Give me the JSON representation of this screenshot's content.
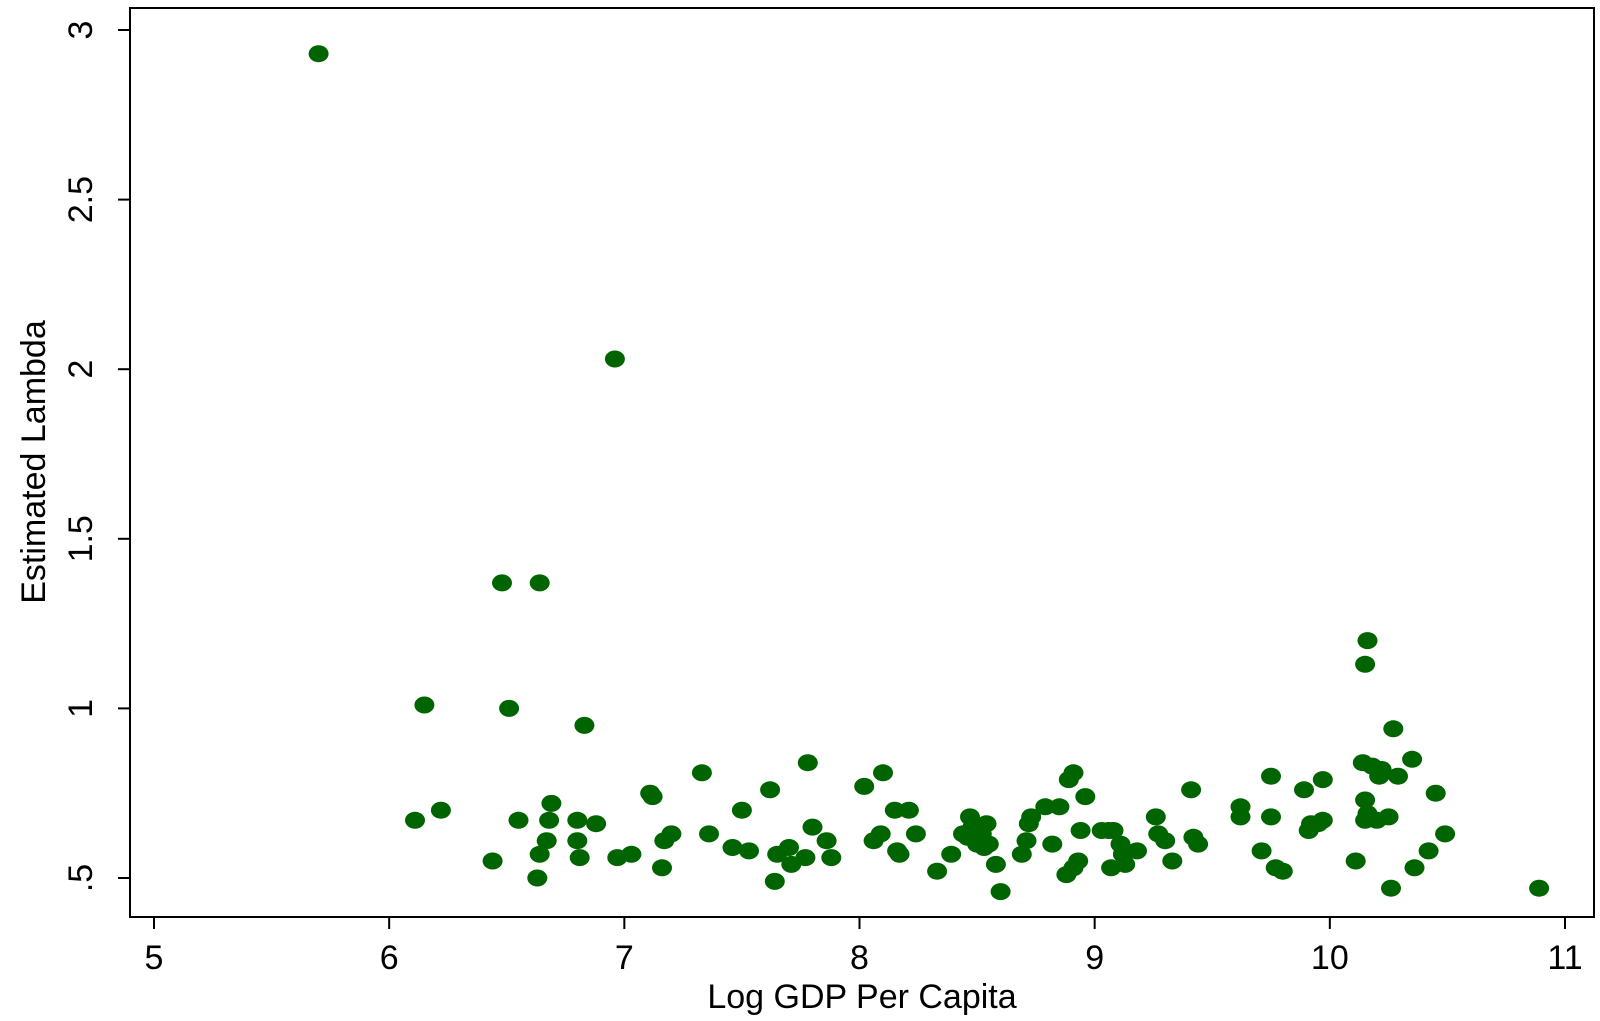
{
  "chart_data": {
    "type": "scatter",
    "title": "",
    "xlabel": "Log GDP Per Capita",
    "ylabel": "Estimated Lambda",
    "xlim": [
      5,
      11.1
    ],
    "ylim": [
      0.39,
      3.08
    ],
    "x_ticks": [
      5,
      6,
      7,
      8,
      9,
      10,
      11
    ],
    "x_tick_labels": [
      "5",
      "6",
      "7",
      "8",
      "9",
      "10",
      "11"
    ],
    "y_ticks": [
      0.5,
      1,
      1.5,
      2,
      2.5,
      3
    ],
    "y_tick_labels": [
      ".5",
      "1",
      "1.5",
      "2",
      "2.5",
      "3"
    ],
    "grid": false,
    "legend": "none",
    "marker_color": "#006400",
    "series": [
      {
        "points": [
          [
            5.7,
            2.93
          ],
          [
            6.96,
            2.03
          ],
          [
            6.48,
            1.37
          ],
          [
            6.64,
            1.37
          ],
          [
            6.15,
            1.01
          ],
          [
            6.51,
            1.0
          ],
          [
            6.83,
            0.95
          ],
          [
            6.11,
            0.67
          ],
          [
            6.22,
            0.7
          ],
          [
            6.44,
            0.55
          ],
          [
            6.55,
            0.67
          ],
          [
            6.63,
            0.5
          ],
          [
            6.64,
            0.57
          ],
          [
            6.67,
            0.61
          ],
          [
            6.68,
            0.67
          ],
          [
            6.69,
            0.72
          ],
          [
            6.8,
            0.61
          ],
          [
            6.8,
            0.67
          ],
          [
            6.81,
            0.56
          ],
          [
            6.88,
            0.66
          ],
          [
            6.97,
            0.56
          ],
          [
            7.03,
            0.57
          ],
          [
            7.11,
            0.75
          ],
          [
            7.12,
            0.74
          ],
          [
            7.16,
            0.53
          ],
          [
            7.17,
            0.61
          ],
          [
            7.2,
            0.63
          ],
          [
            7.33,
            0.81
          ],
          [
            7.36,
            0.63
          ],
          [
            7.46,
            0.59
          ],
          [
            7.5,
            0.7
          ],
          [
            7.53,
            0.58
          ],
          [
            7.62,
            0.76
          ],
          [
            7.64,
            0.49
          ],
          [
            7.65,
            0.57
          ],
          [
            7.7,
            0.59
          ],
          [
            7.71,
            0.54
          ],
          [
            7.77,
            0.56
          ],
          [
            7.78,
            0.84
          ],
          [
            7.8,
            0.65
          ],
          [
            7.86,
            0.61
          ],
          [
            7.88,
            0.56
          ],
          [
            8.02,
            0.77
          ],
          [
            8.06,
            0.61
          ],
          [
            8.09,
            0.63
          ],
          [
            8.1,
            0.81
          ],
          [
            8.15,
            0.7
          ],
          [
            8.16,
            0.58
          ],
          [
            8.17,
            0.57
          ],
          [
            8.21,
            0.7
          ],
          [
            8.24,
            0.63
          ],
          [
            8.33,
            0.52
          ],
          [
            8.39,
            0.57
          ],
          [
            8.44,
            0.63
          ],
          [
            8.46,
            0.62
          ],
          [
            8.47,
            0.68
          ],
          [
            8.48,
            0.65
          ],
          [
            8.5,
            0.6
          ],
          [
            8.51,
            0.61
          ],
          [
            8.52,
            0.63
          ],
          [
            8.53,
            0.59
          ],
          [
            8.54,
            0.66
          ],
          [
            8.55,
            0.6
          ],
          [
            8.58,
            0.54
          ],
          [
            8.6,
            0.46
          ],
          [
            8.69,
            0.57
          ],
          [
            8.71,
            0.61
          ],
          [
            8.72,
            0.66
          ],
          [
            8.73,
            0.68
          ],
          [
            8.79,
            0.71
          ],
          [
            8.82,
            0.6
          ],
          [
            8.85,
            0.71
          ],
          [
            8.88,
            0.51
          ],
          [
            8.89,
            0.79
          ],
          [
            8.91,
            0.81
          ],
          [
            8.91,
            0.53
          ],
          [
            8.93,
            0.55
          ],
          [
            8.94,
            0.64
          ],
          [
            8.96,
            0.74
          ],
          [
            9.03,
            0.64
          ],
          [
            9.06,
            0.64
          ],
          [
            9.07,
            0.53
          ],
          [
            9.08,
            0.64
          ],
          [
            9.11,
            0.6
          ],
          [
            9.12,
            0.57
          ],
          [
            9.13,
            0.54
          ],
          [
            9.18,
            0.58
          ],
          [
            9.26,
            0.68
          ],
          [
            9.27,
            0.63
          ],
          [
            9.3,
            0.61
          ],
          [
            9.33,
            0.55
          ],
          [
            9.41,
            0.76
          ],
          [
            9.42,
            0.62
          ],
          [
            9.44,
            0.6
          ],
          [
            9.62,
            0.71
          ],
          [
            9.62,
            0.68
          ],
          [
            9.71,
            0.58
          ],
          [
            9.75,
            0.8
          ],
          [
            9.75,
            0.68
          ],
          [
            9.77,
            0.53
          ],
          [
            9.8,
            0.52
          ],
          [
            9.89,
            0.76
          ],
          [
            9.91,
            0.64
          ],
          [
            9.92,
            0.66
          ],
          [
            9.95,
            0.66
          ],
          [
            9.97,
            0.79
          ],
          [
            9.97,
            0.67
          ],
          [
            10.11,
            0.55
          ],
          [
            10.14,
            0.84
          ],
          [
            10.15,
            0.67
          ],
          [
            10.15,
            0.73
          ],
          [
            10.16,
            0.69
          ],
          [
            10.15,
            1.13
          ],
          [
            10.16,
            1.2
          ],
          [
            10.18,
            0.83
          ],
          [
            10.2,
            0.67
          ],
          [
            10.21,
            0.8
          ],
          [
            10.22,
            0.82
          ],
          [
            10.25,
            0.68
          ],
          [
            10.26,
            0.47
          ],
          [
            10.27,
            0.94
          ],
          [
            10.29,
            0.8
          ],
          [
            10.35,
            0.85
          ],
          [
            10.36,
            0.53
          ],
          [
            10.42,
            0.58
          ],
          [
            10.45,
            0.75
          ],
          [
            10.49,
            0.63
          ],
          [
            10.89,
            0.47
          ]
        ]
      }
    ]
  }
}
